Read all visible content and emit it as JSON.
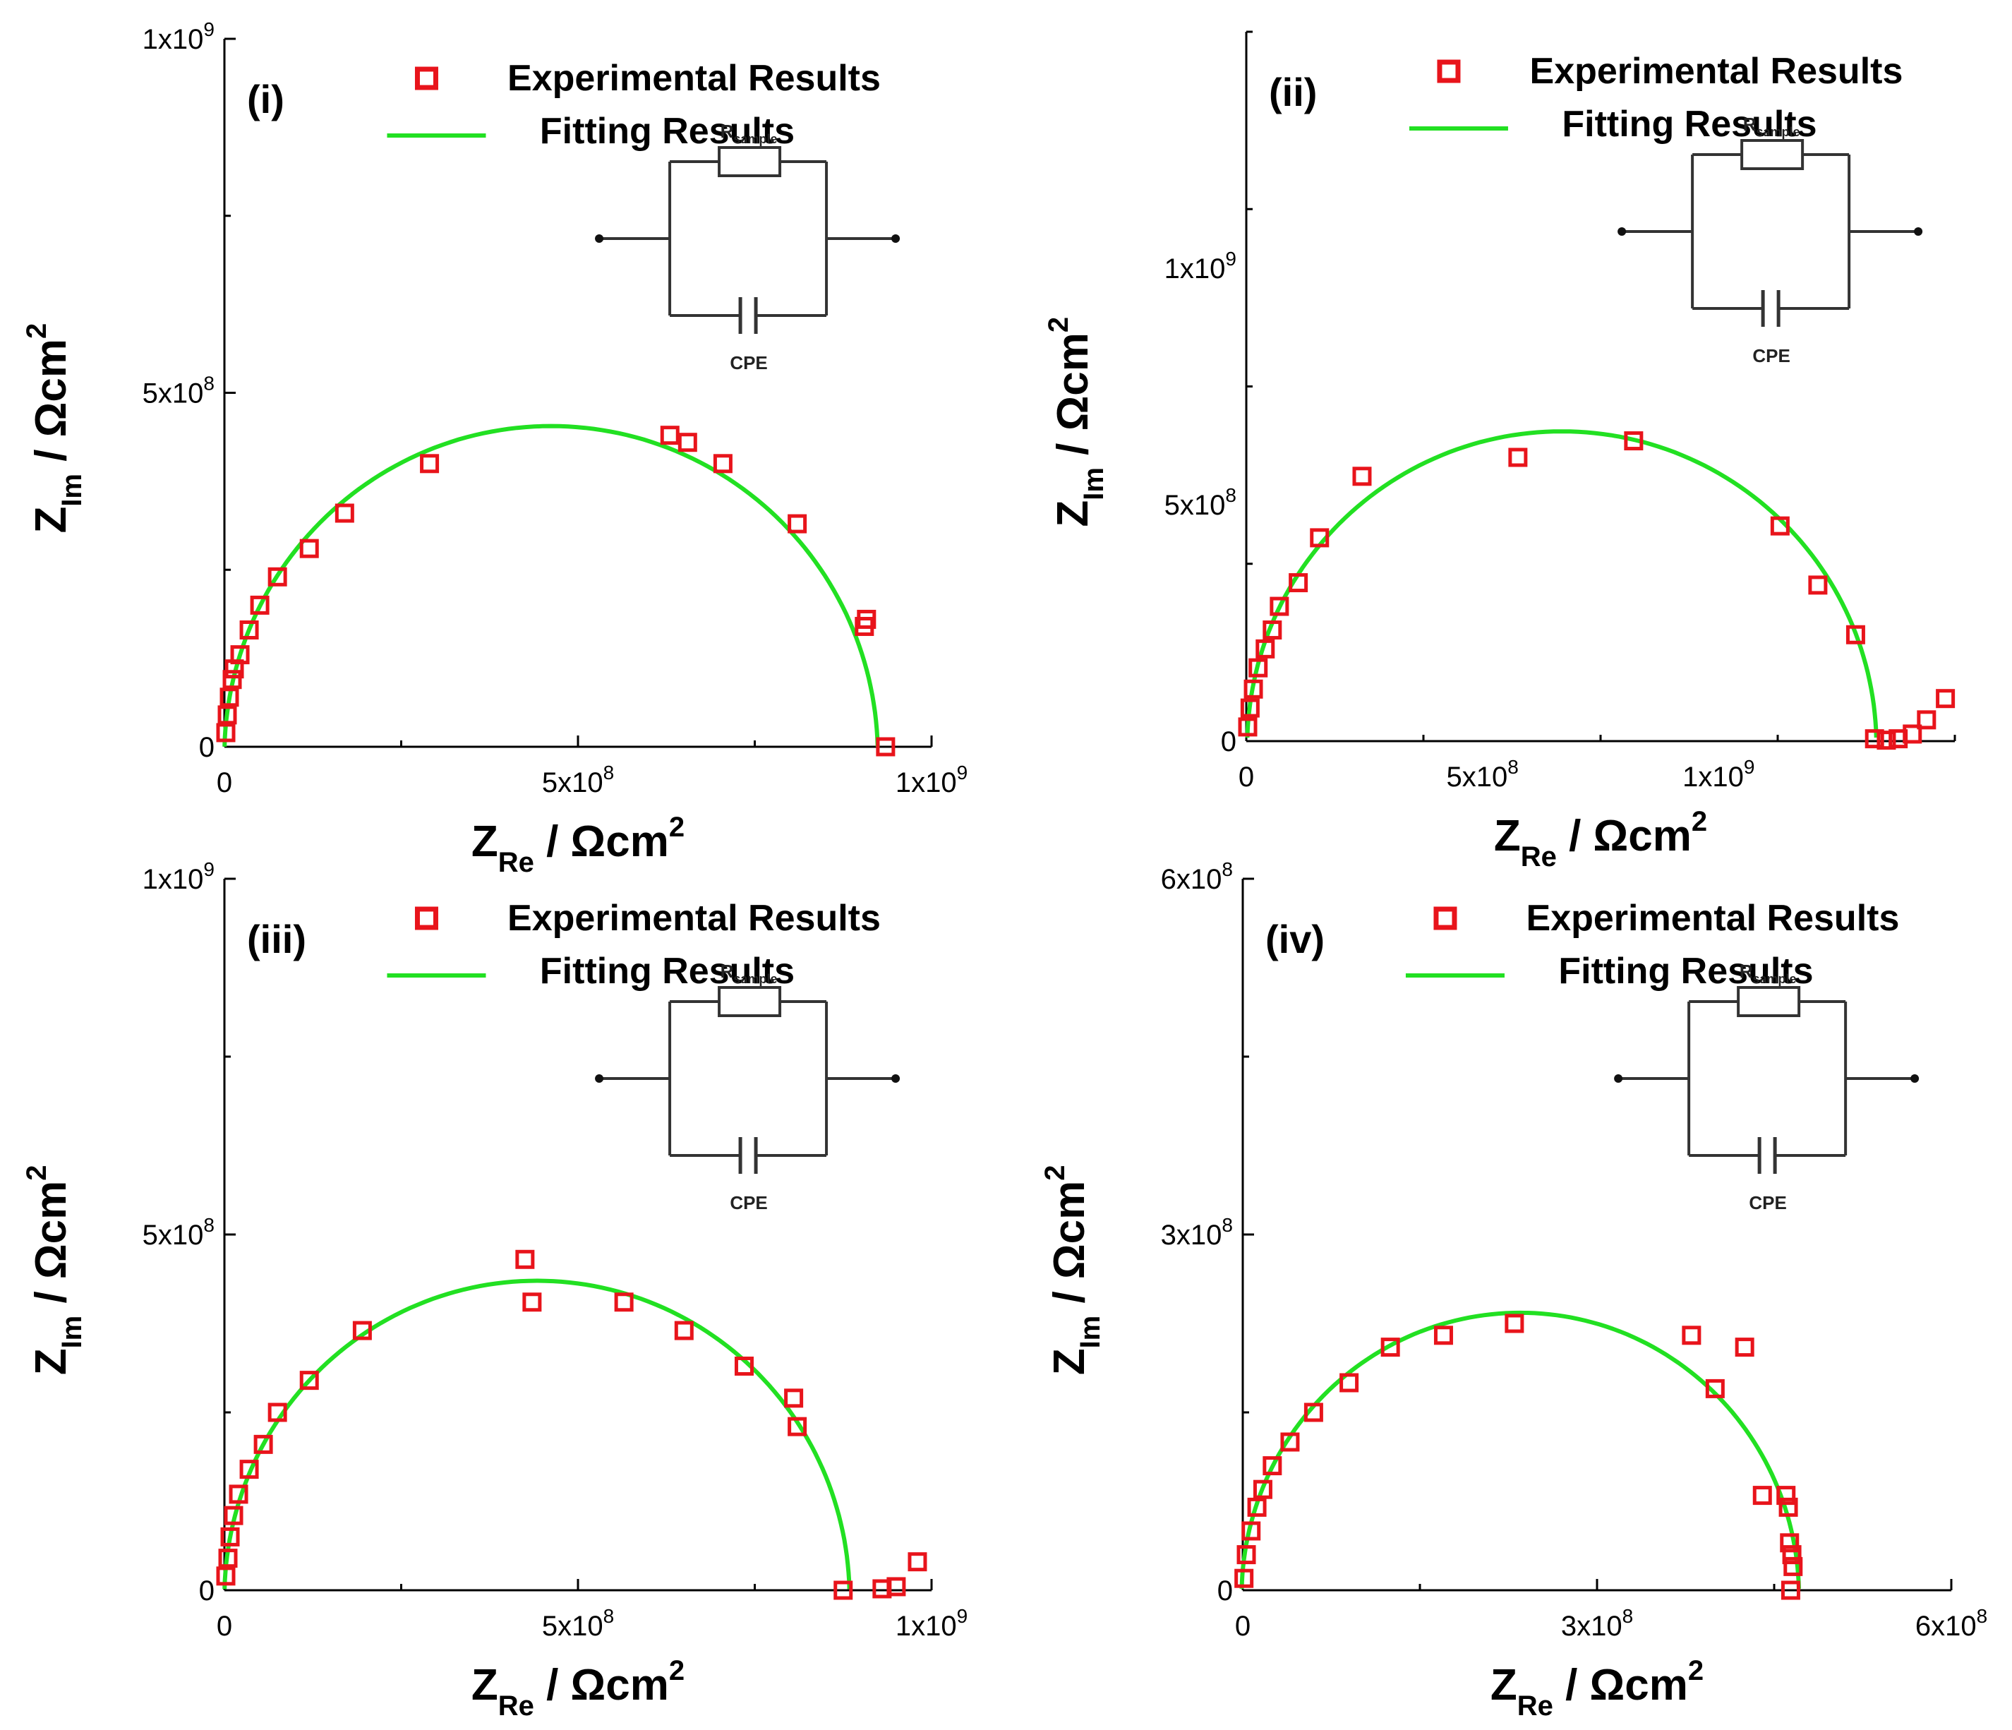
{
  "colors": {
    "experimental": "#e8141b",
    "fitting": "#22e022",
    "axis": "#000000"
  },
  "legend": {
    "experimental_label": "Experimental Results",
    "fitting_label": "Fitting Results"
  },
  "circuit": {
    "resistor_label": "R",
    "resistor_subscript": "sample",
    "cpe_label": "CPE"
  },
  "axis_labels": {
    "x_main": "Z",
    "x_sub": "Re",
    "x_unit": " / Ωcm",
    "x_exp": "2",
    "y_main": "Z",
    "y_sub": "Im",
    "y_unit": " / Ωcm",
    "y_exp": "2"
  },
  "chart_data": [
    {
      "panel": "(i)",
      "type": "scatter",
      "xlim": [
        0,
        1000000000
      ],
      "ylim": [
        0,
        1000000000
      ],
      "x_ticks": [
        {
          "v": 0,
          "m": "0",
          "e": ""
        },
        {
          "v": 500000000,
          "m": "5x10",
          "e": "8"
        },
        {
          "v": 1000000000,
          "m": "1x10",
          "e": "9"
        }
      ],
      "y_ticks": [
        {
          "v": 0,
          "m": "0",
          "e": ""
        },
        {
          "v": 500000000,
          "m": "5x10",
          "e": "8"
        },
        {
          "v": 1000000000,
          "m": "1x10",
          "e": "9"
        }
      ],
      "series": [
        {
          "name": "Experimental Results",
          "points": [
            [
              2000000,
              20000000
            ],
            [
              4000000,
              45000000
            ],
            [
              7000000,
              70000000
            ],
            [
              11000000,
              95000000
            ],
            [
              14000000,
              110000000
            ],
            [
              22000000,
              130000000
            ],
            [
              35000000,
              165000000
            ],
            [
              50000000,
              200000000
            ],
            [
              75000000,
              240000000
            ],
            [
              120000000,
              280000000
            ],
            [
              170000000,
              330000000
            ],
            [
              290000000,
              400000000
            ],
            [
              630000000,
              440000000
            ],
            [
              655000000,
              430000000
            ],
            [
              705000000,
              400000000
            ],
            [
              810000000,
              315000000
            ],
            [
              905000000,
              170000000
            ],
            [
              908000000,
              180000000
            ],
            [
              935000000,
              0
            ]
          ]
        },
        {
          "name": "Fitting Results",
          "center": [
            462000000,
            -12000000
          ],
          "radius_x": 462000000,
          "radius_y": 465000000
        }
      ]
    },
    {
      "panel": "(ii)",
      "type": "scatter",
      "xlim": [
        0,
        1500000000
      ],
      "ylim": [
        0,
        1500000000
      ],
      "x_ticks": [
        {
          "v": 0,
          "m": "0",
          "e": ""
        },
        {
          "v": 500000000,
          "m": "5x10",
          "e": "8"
        },
        {
          "v": 1000000000,
          "m": "1x10",
          "e": "9"
        }
      ],
      "y_ticks": [
        {
          "v": 0,
          "m": "0",
          "e": ""
        },
        {
          "v": 500000000,
          "m": "5x10",
          "e": "8"
        },
        {
          "v": 1000000000,
          "m": "1x10",
          "e": "9"
        }
      ],
      "series": [
        {
          "name": "Experimental Results",
          "points": [
            [
              3000000,
              30000000
            ],
            [
              8000000,
              70000000
            ],
            [
              15000000,
              110000000
            ],
            [
              25000000,
              155000000
            ],
            [
              40000000,
              195000000
            ],
            [
              55000000,
              235000000
            ],
            [
              70000000,
              285000000
            ],
            [
              110000000,
              335000000
            ],
            [
              155000000,
              430000000
            ],
            [
              245000000,
              560000000
            ],
            [
              575000000,
              600000000
            ],
            [
              820000000,
              635000000
            ],
            [
              1130000000,
              455000000
            ],
            [
              1210000000,
              330000000
            ],
            [
              1290000000,
              225000000
            ],
            [
              1330000000,
              5000000
            ],
            [
              1355000000,
              2000000
            ],
            [
              1380000000,
              5000000
            ],
            [
              1410000000,
              15000000
            ],
            [
              1440000000,
              45000000
            ],
            [
              1480000000,
              90000000
            ]
          ]
        },
        {
          "name": "Fitting Results",
          "center": [
            668000000,
            -10000000
          ],
          "radius_x": 666000000,
          "radius_y": 665000000
        }
      ]
    },
    {
      "panel": "(iii)",
      "type": "scatter",
      "xlim": [
        0,
        1000000000
      ],
      "ylim": [
        0,
        1000000000
      ],
      "x_ticks": [
        {
          "v": 0,
          "m": "0",
          "e": ""
        },
        {
          "v": 500000000,
          "m": "5x10",
          "e": "8"
        },
        {
          "v": 1000000000,
          "m": "1x10",
          "e": "9"
        }
      ],
      "y_ticks": [
        {
          "v": 0,
          "m": "0",
          "e": ""
        },
        {
          "v": 500000000,
          "m": "5x10",
          "e": "8"
        },
        {
          "v": 1000000000,
          "m": "1x10",
          "e": "9"
        }
      ],
      "series": [
        {
          "name": "Experimental Results",
          "points": [
            [
              2000000,
              20000000
            ],
            [
              5000000,
              45000000
            ],
            [
              8000000,
              75000000
            ],
            [
              13000000,
              105000000
            ],
            [
              20000000,
              135000000
            ],
            [
              35000000,
              170000000
            ],
            [
              55000000,
              205000000
            ],
            [
              75000000,
              250000000
            ],
            [
              120000000,
              295000000
            ],
            [
              195000000,
              365000000
            ],
            [
              425000000,
              465000000
            ],
            [
              435000000,
              405000000
            ],
            [
              565000000,
              405000000
            ],
            [
              650000000,
              365000000
            ],
            [
              735000000,
              315000000
            ],
            [
              805000000,
              270000000
            ],
            [
              810000000,
              230000000
            ],
            [
              875000000,
              0
            ],
            [
              930000000,
              2000000
            ],
            [
              950000000,
              5000000
            ],
            [
              980000000,
              40000000
            ]
          ]
        },
        {
          "name": "Fitting Results",
          "center": [
            442000000,
            -10000000
          ],
          "radius_x": 442000000,
          "radius_y": 445000000
        }
      ]
    },
    {
      "panel": "(iv)",
      "type": "scatter",
      "xlim": [
        0,
        600000000
      ],
      "ylim": [
        0,
        600000000
      ],
      "x_ticks": [
        {
          "v": 0,
          "m": "0",
          "e": ""
        },
        {
          "v": 300000000,
          "m": "3x10",
          "e": "8"
        },
        {
          "v": 600000000,
          "m": "6x10",
          "e": "8"
        }
      ],
      "y_ticks": [
        {
          "v": 0,
          "m": "0",
          "e": ""
        },
        {
          "v": 300000000,
          "m": "3x10",
          "e": "8"
        },
        {
          "v": 600000000,
          "m": "6x10",
          "e": "8"
        }
      ],
      "series": [
        {
          "name": "Experimental Results",
          "points": [
            [
              1000000,
              10000000
            ],
            [
              3000000,
              30000000
            ],
            [
              7000000,
              50000000
            ],
            [
              12000000,
              70000000
            ],
            [
              17000000,
              85000000
            ],
            [
              25000000,
              105000000
            ],
            [
              40000000,
              125000000
            ],
            [
              60000000,
              150000000
            ],
            [
              90000000,
              175000000
            ],
            [
              125000000,
              205000000
            ],
            [
              170000000,
              215000000
            ],
            [
              230000000,
              225000000
            ],
            [
              380000000,
              215000000
            ],
            [
              400000000,
              170000000
            ],
            [
              425000000,
              205000000
            ],
            [
              440000000,
              80000000
            ],
            [
              460000000,
              80000000
            ],
            [
              462000000,
              70000000
            ],
            [
              463000000,
              40000000
            ],
            [
              465000000,
              30000000
            ],
            [
              466000000,
              20000000
            ],
            [
              464000000,
              0
            ]
          ]
        },
        {
          "name": "Fitting Results",
          "center": [
            235000000,
            -5000000
          ],
          "radius_x": 236000000,
          "radius_y": 239000000
        }
      ]
    }
  ]
}
